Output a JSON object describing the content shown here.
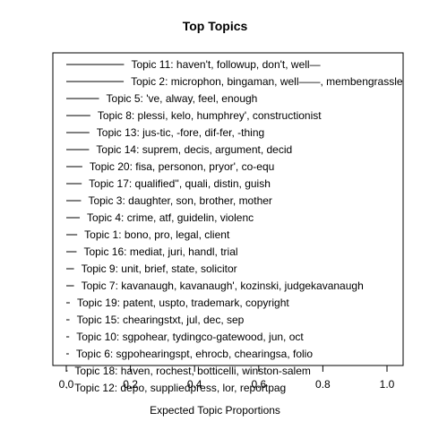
{
  "chart_data": {
    "type": "bar",
    "title": "Top Topics",
    "xlabel": "Expected Topic Proportions",
    "xlim": [
      0,
      1
    ],
    "xticks": [
      "0.0",
      "0.2",
      "0.4",
      "0.6",
      "0.8",
      "1.0"
    ],
    "topics": [
      {
        "label": "Topic 11: haven't, followup, don't, well—",
        "value": 0.18
      },
      {
        "label": "Topic 2: microphon, bingaman, well——, membengrassle",
        "value": 0.179
      },
      {
        "label": "Topic 5: 've, alway, feel, enough",
        "value": 0.102
      },
      {
        "label": "Topic 8: plessi, kelo, humphrey', constructionist",
        "value": 0.075
      },
      {
        "label": "Topic 13: jus-tic, -fore, dif-fer, -thing",
        "value": 0.072
      },
      {
        "label": "Topic 14: suprem, decis, argument, decid",
        "value": 0.071
      },
      {
        "label": "Topic 20: fisa, personon, pryor', co-equ",
        "value": 0.05
      },
      {
        "label": "Topic 17: qualified'', quali, distin, guish",
        "value": 0.048
      },
      {
        "label": "Topic 3: daughter, son, brother, mother",
        "value": 0.046
      },
      {
        "label": "Topic 4: crime, atf, guidelin, violenc",
        "value": 0.042
      },
      {
        "label": "Topic 1: bono, pro, legal, client",
        "value": 0.034
      },
      {
        "label": "Topic 16: mediat, juri, handl, trial",
        "value": 0.032
      },
      {
        "label": "Topic 9: unit, brief, state, solicitor",
        "value": 0.024
      },
      {
        "label": "Topic 7: kavanaugh, kavanaugh', kozinski, judgekavanaugh",
        "value": 0.024
      },
      {
        "label": "Topic 19: patent, uspto, trademark, copyright",
        "value": 0.011
      },
      {
        "label": "Topic 15: chearingstxt, jul, dec, sep",
        "value": 0.01
      },
      {
        "label": "Topic 10: sgpohear, tydingco-gatewood, jun, oct",
        "value": 0.009
      },
      {
        "label": "Topic 6: sgpohearingspt, ehrocb, chearingsa, folio",
        "value": 0.008
      },
      {
        "label": "Topic 18: haven, rochest, botticelli, winston-salem",
        "value": 0.004
      },
      {
        "label": "Topic 12: depo, suppliedpress, lor, reportpag",
        "value": 0.003
      }
    ]
  }
}
